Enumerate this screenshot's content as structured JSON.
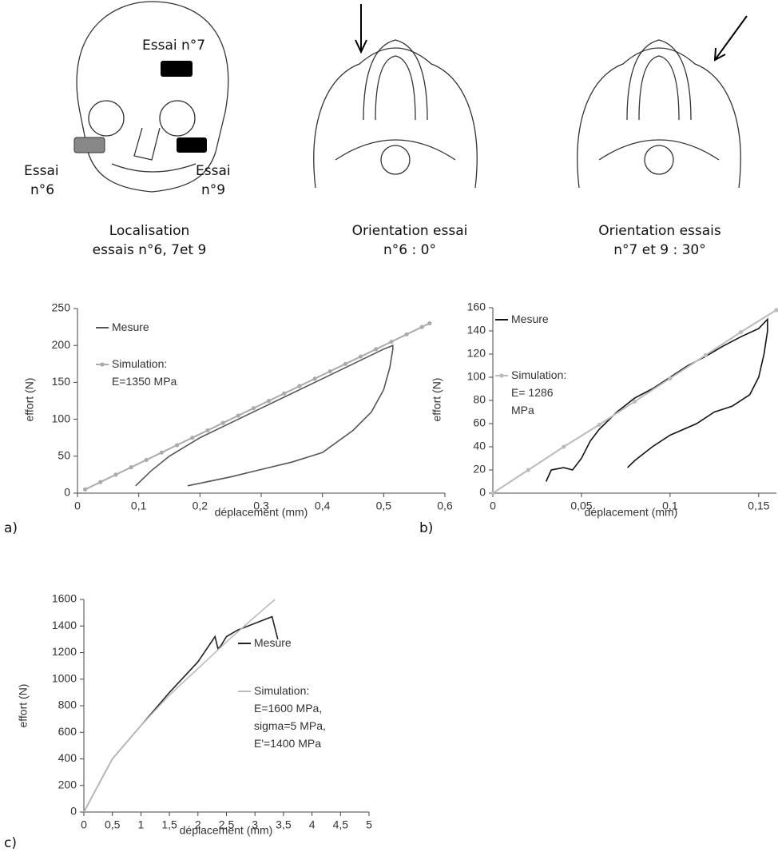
{
  "illustrations": [
    {
      "labels": [
        "Essai n°7",
        "Essai",
        "n°6",
        "Essai",
        "n°9"
      ],
      "caption": [
        "Localisation",
        "essais n°6, 7et 9"
      ]
    },
    {
      "caption": [
        "Orientation essai",
        "n°6 : 0°"
      ]
    },
    {
      "caption": [
        "Orientation essais",
        "n°7 et 9 : 30°"
      ]
    }
  ],
  "panel_labels": [
    "a)",
    "b)",
    "c)"
  ],
  "chart_data": [
    {
      "type": "line",
      "xlabel": "déplacement (mm)",
      "ylabel": "effort (N)",
      "xlim": [
        0,
        0.6
      ],
      "ylim": [
        0,
        250
      ],
      "xticks": [
        0,
        {
          "value": 0.1,
          "label": "0,1"
        },
        {
          "value": 0.2,
          "label": "0,2"
        },
        {
          "value": 0.3,
          "label": "0,3"
        },
        {
          "value": 0.4,
          "label": "0,4"
        },
        {
          "value": 0.5,
          "label": "0,5"
        },
        {
          "value": 0.6,
          "label": "0,6"
        }
      ],
      "yticks": [
        0,
        50,
        100,
        150,
        200,
        250
      ],
      "series": [
        {
          "name": "Mesure",
          "color": "#555555",
          "markers": false,
          "x": [
            0.095,
            0.12,
            0.15,
            0.2,
            0.3,
            0.4,
            0.5,
            0.515,
            0.515,
            0.51,
            0.5,
            0.48,
            0.45,
            0.4,
            0.35,
            0.3,
            0.25,
            0.18
          ],
          "values": [
            10,
            30,
            50,
            75,
            115,
            155,
            195,
            200,
            195,
            170,
            140,
            110,
            85,
            55,
            42,
            32,
            22,
            10
          ]
        },
        {
          "name": "Simulation:\nE=1350 MPa",
          "color": "#aaaaaa",
          "markers": true,
          "x": [
            0.0125,
            0.0375,
            0.0625,
            0.0875,
            0.1125,
            0.1375,
            0.1625,
            0.1875,
            0.2125,
            0.2375,
            0.2625,
            0.2875,
            0.3125,
            0.3375,
            0.3625,
            0.3875,
            0.4125,
            0.4375,
            0.4625,
            0.4875,
            0.5125,
            0.5375,
            0.5625,
            0.575
          ],
          "values": [
            5,
            15,
            25,
            35,
            45,
            55,
            65,
            75,
            85,
            95,
            105,
            115,
            125,
            135,
            145,
            155,
            165,
            175,
            185,
            195,
            205,
            215,
            225,
            230
          ]
        }
      ]
    },
    {
      "type": "line",
      "xlabel": "déplacement (mm)",
      "ylabel": "effort (N)",
      "xlim": [
        0,
        0.16
      ],
      "ylim": [
        0,
        160
      ],
      "xticks": [
        0,
        {
          "value": 0.05,
          "label": "0,05"
        },
        {
          "value": 0.1,
          "label": "0,1"
        },
        {
          "value": 0.15,
          "label": "0,15"
        }
      ],
      "yticks": [
        0,
        20,
        40,
        60,
        80,
        100,
        120,
        140,
        160
      ],
      "series": [
        {
          "name": "Mesure",
          "color": "#111111",
          "markers": false,
          "x": [
            0.03,
            0.033,
            0.04,
            0.045,
            0.05,
            0.055,
            0.06,
            0.07,
            0.08,
            0.09,
            0.1,
            0.11,
            0.12,
            0.13,
            0.14,
            0.15,
            0.155,
            0.155,
            0.153,
            0.15,
            0.145,
            0.135,
            0.125,
            0.115,
            0.1,
            0.09,
            0.08,
            0.076
          ],
          "values": [
            10,
            20,
            22,
            20,
            30,
            45,
            55,
            70,
            82,
            90,
            100,
            110,
            118,
            127,
            135,
            142,
            150,
            140,
            120,
            100,
            85,
            75,
            70,
            60,
            50,
            40,
            28,
            22
          ]
        },
        {
          "name": "Simulation:\nE= 1286\nMPa",
          "color": "#bbbbbb",
          "markers": true,
          "x": [
            0,
            0.02,
            0.04,
            0.06,
            0.08,
            0.1,
            0.12,
            0.14,
            0.16
          ],
          "values": [
            0,
            20,
            40,
            59,
            79,
            99,
            119,
            139,
            158
          ]
        }
      ]
    },
    {
      "type": "line",
      "xlabel": "déplacement (mm)",
      "ylabel": "effort (N)",
      "xlim": [
        0,
        5
      ],
      "ylim": [
        0,
        1600
      ],
      "xticks": [
        0,
        {
          "value": 0.5,
          "label": "0,5"
        },
        1,
        {
          "value": 1.5,
          "label": "1,5"
        },
        2,
        {
          "value": 2.5,
          "label": "2,5"
        },
        3,
        {
          "value": 3.5,
          "label": "3,5"
        },
        4,
        {
          "value": 4.5,
          "label": "4,5"
        },
        5
      ],
      "yticks": [
        0,
        200,
        400,
        600,
        800,
        1000,
        1200,
        1400,
        1600
      ],
      "series": [
        {
          "name": "Mesure",
          "color": "#222222",
          "markers": false,
          "x": [
            0,
            0.25,
            0.5,
            1,
            1.5,
            2,
            2.3,
            2.35,
            2.4,
            2.5,
            2.7,
            3,
            3.3,
            3.4
          ],
          "values": [
            0,
            200,
            400,
            650,
            900,
            1130,
            1320,
            1230,
            1250,
            1320,
            1370,
            1420,
            1470,
            1300
          ]
        },
        {
          "name": "Simulation:\nE=1600 MPa,\nsigma=5 MPa,\nE'=1400 MPa",
          "color": "#bbbbbb",
          "markers": false,
          "x": [
            0,
            0.5,
            1,
            1.5,
            2,
            2.5,
            3,
            3.35
          ],
          "values": [
            0,
            400,
            650,
            880,
            1080,
            1280,
            1470,
            1600
          ]
        }
      ]
    }
  ]
}
